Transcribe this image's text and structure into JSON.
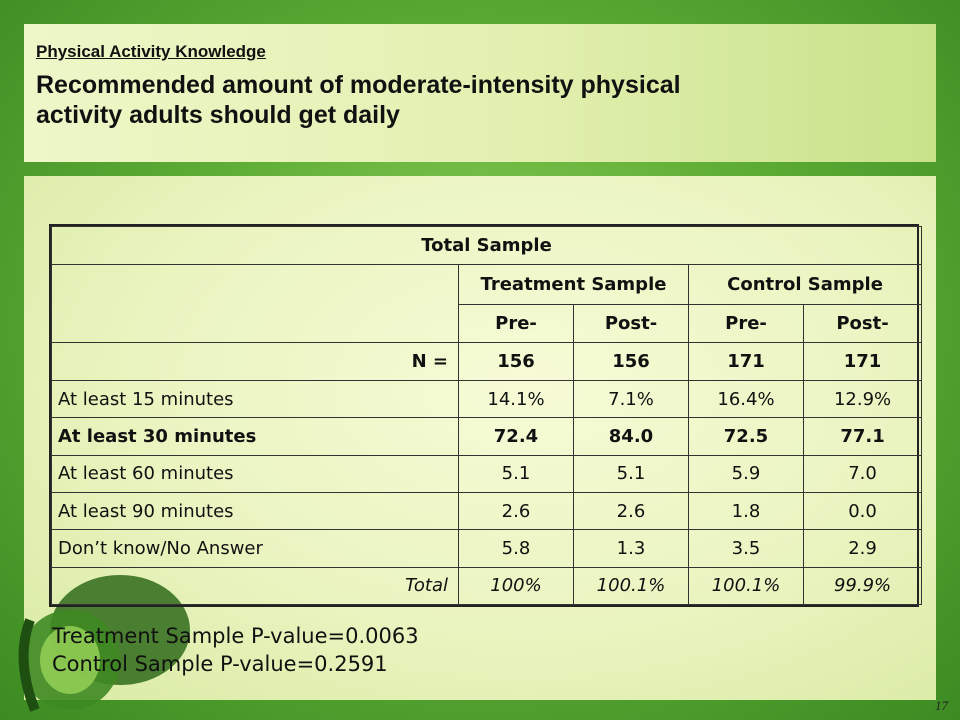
{
  "header": {
    "subtitle": "Physical Activity Knowledge",
    "title_line1": "Recommended amount of moderate-intensity physical",
    "title_line2": "activity adults should get daily"
  },
  "table": {
    "caption": "Total Sample",
    "groups": [
      "Treatment Sample",
      "Control Sample"
    ],
    "subheaders": [
      "Pre-",
      "Post-",
      "Pre-",
      "Post-"
    ],
    "n_label": "N =",
    "n_values": [
      "156",
      "156",
      "171",
      "171"
    ],
    "rows": [
      {
        "label": "At least 15 minutes",
        "values": [
          "14.1%",
          "7.1%",
          "16.4%",
          "12.9%"
        ]
      },
      {
        "label": "At least 30 minutes",
        "values": [
          "72.4",
          "84.0",
          "72.5",
          "77.1"
        ]
      },
      {
        "label": "At least 60 minutes",
        "values": [
          "5.1",
          "5.1",
          "5.9",
          "7.0"
        ]
      },
      {
        "label": "At least 90 minutes",
        "values": [
          "2.6",
          "2.6",
          "1.8",
          "0.0"
        ]
      },
      {
        "label": "Don’t know/No Answer",
        "values": [
          "5.8",
          "1.3",
          "3.5",
          "2.9"
        ]
      }
    ],
    "total_label": "Total",
    "total_values": [
      "100%",
      "100.1%",
      "100.1%",
      "99.9%"
    ]
  },
  "pvalues": {
    "treatment": "Treatment Sample P-value=0.0063",
    "control": "Control Sample P-value=0.2591"
  },
  "page_number": "17",
  "icons": {
    "background_decoration": "pepper-silhouette-icon"
  }
}
